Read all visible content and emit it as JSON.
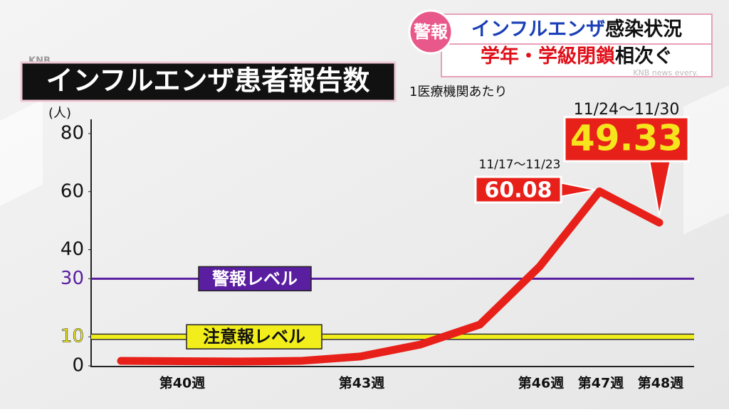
{
  "logo": "KNB",
  "watermark": "KNB news every.",
  "headline": {
    "badge": "警報",
    "line1": [
      {
        "text": "インフルエンザ",
        "color": "#1a3fb8"
      },
      {
        "text": "感染状況",
        "color": "#111111"
      }
    ],
    "line2": [
      {
        "text": "学年・学級閉鎖",
        "color": "#e0101a"
      },
      {
        "text": "相次ぐ",
        "color": "#111111"
      }
    ]
  },
  "chart_data": {
    "type": "line",
    "title": "インフルエンザ患者報告数",
    "subtitle": "1医療機関あたり",
    "y_label": "(人)",
    "categories": [
      null,
      "第40週",
      null,
      null,
      "第43週",
      null,
      null,
      "第46週",
      "第47週",
      "第48週"
    ],
    "series": [
      {
        "name": "インフルエンザ患者報告数",
        "color": "#e8201a",
        "values": [
          1.7,
          1.6,
          1.5,
          1.7,
          3.2,
          7.3,
          14.2,
          34.2,
          60.08,
          49.33
        ],
        "point_notes": [
          null,
          null,
          null,
          null,
          null,
          null,
          null,
          null,
          "11/17～11/23",
          "11/24～11/30"
        ]
      }
    ],
    "ylim": [
      0,
      80
    ],
    "yticks": [
      0,
      10,
      30,
      40,
      60,
      80
    ],
    "thresholds": [
      {
        "value": 30,
        "label": "警報レベル",
        "color": "#5a1ea0"
      },
      {
        "value": 10,
        "label": "注意報レベル",
        "color": "#f2ee1c"
      }
    ]
  }
}
